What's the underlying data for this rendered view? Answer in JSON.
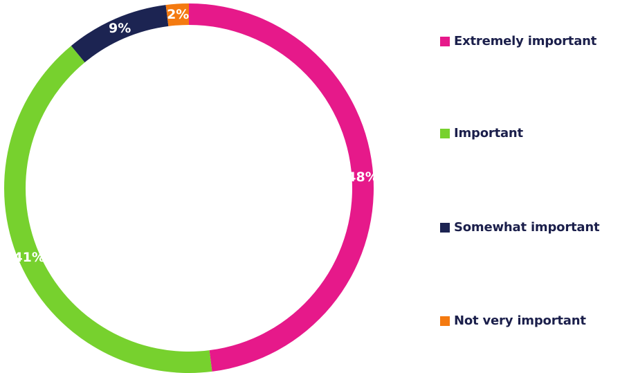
{
  "chart_data": {
    "type": "pie",
    "variant": "donut",
    "title": "",
    "categories": [
      "Extremely important",
      "Important",
      "Somewhat important",
      "Not very important"
    ],
    "values": [
      48,
      41,
      9,
      2
    ],
    "value_labels": [
      "48%",
      "41%",
      "9%",
      "2%"
    ],
    "colors": [
      "#e6198a",
      "#77d12e",
      "#1c2452",
      "#f47a10"
    ],
    "legend_position": "right"
  }
}
